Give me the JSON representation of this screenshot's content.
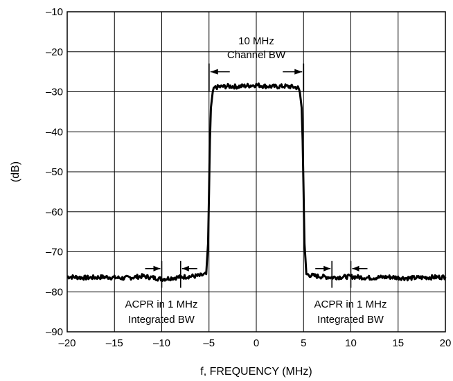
{
  "chart_data": {
    "type": "line",
    "title": "",
    "xlabel": "f, FREQUENCY (MHz)",
    "ylabel": "(dB)",
    "xlim": [
      -20,
      20
    ],
    "ylim": [
      -90,
      -10
    ],
    "grid": true,
    "x_ticks": [
      -20,
      -15,
      -10,
      -5,
      0,
      5,
      10,
      15,
      20
    ],
    "x_tick_labels": [
      "–20",
      "–15",
      "–10",
      "–5",
      "0",
      "5",
      "10",
      "15",
      "20"
    ],
    "y_ticks": [
      -10,
      -20,
      -30,
      -40,
      -50,
      -60,
      -70,
      -80,
      -90
    ],
    "y_tick_labels": [
      "–10",
      "–20",
      "–30",
      "–40",
      "–50",
      "–60",
      "–70",
      "–80",
      "–90"
    ],
    "series": [
      {
        "x": [
          -20,
          -18,
          -16,
          -14,
          -12,
          -10,
          -8,
          -6,
          -5.3,
          -5.1,
          -5.0,
          -4.9,
          -4.8,
          -4.6,
          -4.4,
          -4,
          -3,
          -2,
          -1,
          0,
          1,
          2,
          3,
          4,
          4.4,
          4.6,
          4.8,
          4.9,
          5.0,
          5.1,
          5.3,
          6,
          8,
          10,
          12,
          14,
          16,
          18,
          20
        ],
        "y": [
          -76.2,
          -76.5,
          -76.3,
          -76.6,
          -76.1,
          -76.8,
          -76.3,
          -76.0,
          -75.6,
          -68,
          -55,
          -42,
          -34,
          -30,
          -29,
          -28.8,
          -28.6,
          -28.7,
          -28.5,
          -28.3,
          -28.6,
          -28.7,
          -28.6,
          -28.8,
          -29,
          -30,
          -34,
          -42,
          -55,
          -68,
          -75.6,
          -76.0,
          -76.4,
          -76.2,
          -76.5,
          -76.3,
          -76.6,
          -76.4,
          -76.3
        ],
        "color": "#000000"
      }
    ],
    "annotations": {
      "channel_bw": {
        "line1": "10 MHz",
        "line2": "Channel BW",
        "x_from": -5,
        "x_to": 5,
        "level": -25
      },
      "acpr_left": {
        "line1": "ACPR in 1 MHz",
        "line2": "Integrated BW",
        "x_from": -10,
        "x_to": -8
      },
      "acpr_right": {
        "line1": "ACPR in 1 MHz",
        "line2": "Integrated BW",
        "x_from": 8,
        "x_to": 10
      }
    }
  }
}
